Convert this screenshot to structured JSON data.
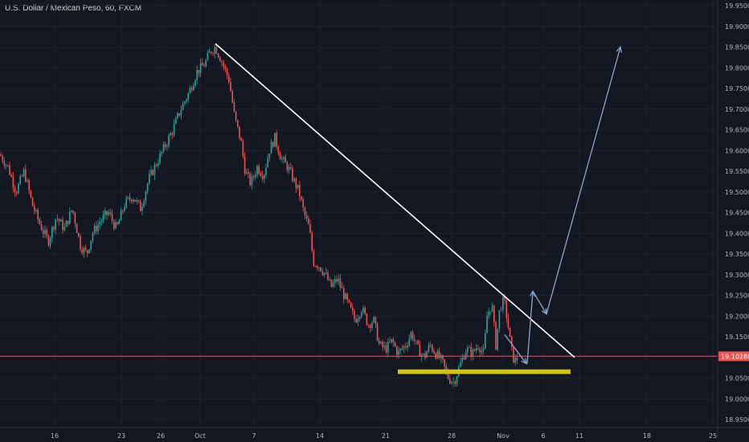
{
  "chart_data": {
    "type": "candlestick",
    "title": "U.S. Dollar / Mexican Peso, 60, FXCM",
    "colors": {
      "background": "#131722",
      "grid": "#1e222d",
      "axis_text": "#b2b5be",
      "up": "#26a69a",
      "down": "#ef5350",
      "price_line": "#ef5350",
      "trendline": "#ffffff",
      "support_zone": "#d4c21c",
      "arrows": "#8ea5c8"
    },
    "ylim": [
      18.93,
      19.96
    ],
    "y_ticks": [
      "19.95000",
      "19.90000",
      "19.85000",
      "19.80000",
      "19.75000",
      "19.70000",
      "19.65000",
      "19.60000",
      "19.55000",
      "19.50000",
      "19.45000",
      "19.40000",
      "19.35000",
      "19.30000",
      "19.25000",
      "19.20000",
      "19.15000",
      "19.05000",
      "19.00000",
      "18.95000"
    ],
    "x_ticks": [
      "16",
      "23",
      "26",
      "Oct",
      "7",
      "14",
      "21",
      "28",
      "Nov",
      "6",
      "11",
      "18",
      "25"
    ],
    "current_price": "19.10280",
    "path_points": [
      [
        0,
        19.59
      ],
      [
        10,
        19.56
      ],
      [
        20,
        19.5
      ],
      [
        30,
        19.55
      ],
      [
        40,
        19.47
      ],
      [
        50,
        19.42
      ],
      [
        60,
        19.38
      ],
      [
        70,
        19.44
      ],
      [
        80,
        19.41
      ],
      [
        90,
        19.46
      ],
      [
        100,
        19.37
      ],
      [
        108,
        19.35
      ],
      [
        115,
        19.4
      ],
      [
        125,
        19.43
      ],
      [
        135,
        19.45
      ],
      [
        145,
        19.41
      ],
      [
        155,
        19.47
      ],
      [
        165,
        19.49
      ],
      [
        175,
        19.46
      ],
      [
        185,
        19.53
      ],
      [
        195,
        19.57
      ],
      [
        205,
        19.61
      ],
      [
        215,
        19.65
      ],
      [
        225,
        19.7
      ],
      [
        235,
        19.74
      ],
      [
        245,
        19.79
      ],
      [
        255,
        19.81
      ],
      [
        262,
        19.84
      ],
      [
        268,
        19.85
      ],
      [
        275,
        19.82
      ],
      [
        285,
        19.77
      ],
      [
        292,
        19.68
      ],
      [
        300,
        19.62
      ],
      [
        305,
        19.55
      ],
      [
        312,
        19.52
      ],
      [
        320,
        19.56
      ],
      [
        328,
        19.54
      ],
      [
        335,
        19.6
      ],
      [
        342,
        19.63
      ],
      [
        350,
        19.58
      ],
      [
        358,
        19.56
      ],
      [
        365,
        19.53
      ],
      [
        372,
        19.5
      ],
      [
        378,
        19.45
      ],
      [
        385,
        19.41
      ],
      [
        390,
        19.33
      ],
      [
        398,
        19.32
      ],
      [
        405,
        19.3
      ],
      [
        412,
        19.27
      ],
      [
        420,
        19.29
      ],
      [
        428,
        19.25
      ],
      [
        435,
        19.22
      ],
      [
        442,
        19.19
      ],
      [
        450,
        19.22
      ],
      [
        458,
        19.18
      ],
      [
        465,
        19.19
      ],
      [
        472,
        19.13
      ],
      [
        480,
        19.12
      ],
      [
        488,
        19.14
      ],
      [
        495,
        19.11
      ],
      [
        505,
        19.13
      ],
      [
        512,
        19.16
      ],
      [
        520,
        19.12
      ],
      [
        528,
        19.1
      ],
      [
        535,
        19.13
      ],
      [
        542,
        19.11
      ],
      [
        550,
        19.09
      ],
      [
        558,
        19.05
      ],
      [
        565,
        19.04
      ],
      [
        572,
        19.08
      ],
      [
        580,
        19.12
      ],
      [
        588,
        19.11
      ],
      [
        595,
        19.13
      ],
      [
        602,
        19.11
      ],
      [
        606,
        19.2
      ],
      [
        612,
        19.23
      ],
      [
        617,
        19.13
      ],
      [
        622,
        19.22
      ],
      [
        627,
        19.24
      ],
      [
        632,
        19.18
      ],
      [
        636,
        19.12
      ],
      [
        640,
        19.09
      ],
      [
        645,
        19.1
      ]
    ],
    "trendline": {
      "start_x": 268,
      "start_y": 19.858,
      "end_x": 715,
      "end_y": 19.1
    },
    "support_zone": {
      "start_x": 495,
      "end_x": 710,
      "top": 19.071,
      "bottom": 19.06
    },
    "projection_arrows": [
      [
        [
          628,
          19.155
        ],
        [
          655,
          19.085
        ]
      ],
      [
        [
          656,
          19.085
        ],
        [
          663,
          19.26
        ]
      ],
      [
        [
          663,
          19.26
        ],
        [
          680,
          19.205
        ]
      ],
      [
        [
          680,
          19.205
        ],
        [
          772,
          19.85
        ]
      ]
    ]
  }
}
